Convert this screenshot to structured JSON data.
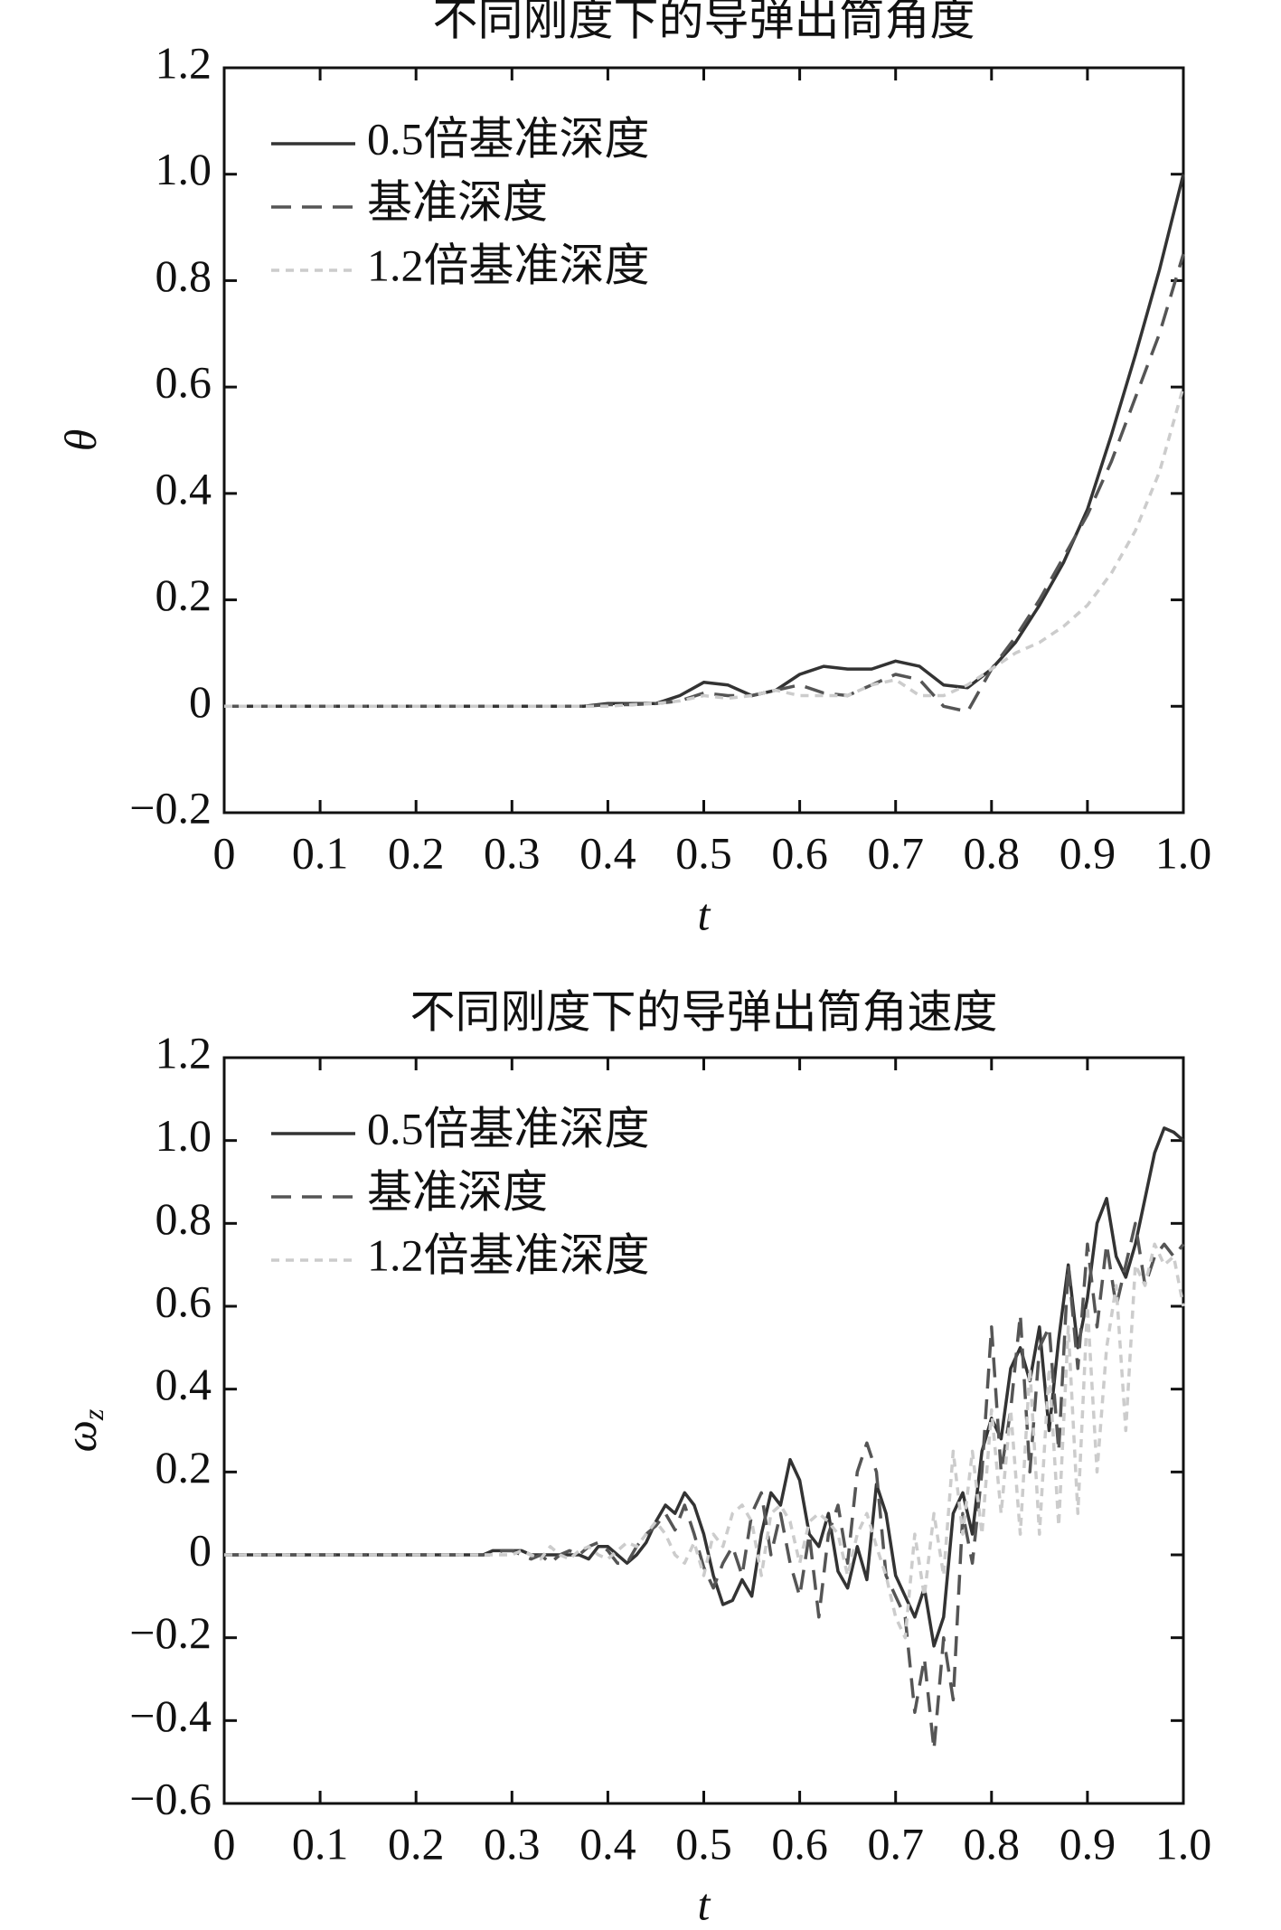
{
  "chart_data": [
    {
      "type": "line",
      "title": "不同刚度下的导弹出筒角度",
      "x_label": "t",
      "y_label": {
        "symbol": "θ"
      },
      "xlim": [
        0,
        1
      ],
      "ylim": [
        -0.2,
        1.2
      ],
      "xticks": [
        0,
        0.1,
        0.2,
        0.3,
        0.4,
        0.5,
        0.6,
        0.7,
        0.8,
        0.9,
        {
          "value": 1,
          "label": "1.0"
        }
      ],
      "yticks": [
        {
          "value": -0.2,
          "label": "−0.2"
        },
        0,
        0.2,
        0.4,
        0.6,
        0.8,
        {
          "value": 1,
          "label": "1.0"
        },
        1.2
      ],
      "legend": "upper left",
      "x": [
        0,
        0.025,
        0.05,
        0.075,
        0.1,
        0.125,
        0.15,
        0.175,
        0.2,
        0.225,
        0.25,
        0.275,
        0.3,
        0.325,
        0.35,
        0.375,
        0.4,
        0.425,
        0.45,
        0.475,
        0.5,
        0.525,
        0.55,
        0.575,
        0.6,
        0.625,
        0.65,
        0.675,
        0.7,
        0.725,
        0.75,
        0.775,
        0.8,
        0.825,
        0.85,
        0.875,
        0.9,
        0.925,
        0.95,
        0.975,
        1
      ],
      "series": [
        {
          "name": "0.5倍基准深度",
          "color": "#333333",
          "linestyle": "solid",
          "values": [
            0,
            0,
            0,
            0,
            0,
            0,
            0,
            0,
            0,
            0,
            0,
            0,
            0,
            0,
            0,
            0,
            0.005,
            0.005,
            0.005,
            0.02,
            0.045,
            0.04,
            0.02,
            0.03,
            0.06,
            0.075,
            0.07,
            0.07,
            0.085,
            0.075,
            0.04,
            0.035,
            0.07,
            0.12,
            0.19,
            0.27,
            0.37,
            0.51,
            0.66,
            0.82,
            1.0
          ]
        },
        {
          "name": "基准深度",
          "color": "#555555",
          "linestyle": "dashed",
          "values": [
            0,
            0,
            0,
            0,
            0,
            0,
            0,
            0,
            0,
            0,
            0,
            0,
            0,
            0,
            0,
            0,
            0.003,
            0.003,
            0.005,
            0.01,
            0.025,
            0.02,
            0.02,
            0.03,
            0.04,
            0.025,
            0.02,
            0.04,
            0.06,
            0.05,
            0.0,
            -0.01,
            0.07,
            0.13,
            0.2,
            0.28,
            0.36,
            0.46,
            0.58,
            0.7,
            0.85
          ]
        },
        {
          "name": "1.2倍基准深度",
          "color": "#cccccc",
          "linestyle": "dotted",
          "values": [
            0,
            0,
            0,
            0,
            0,
            0,
            0,
            0,
            0,
            0,
            0,
            0,
            0,
            0,
            0,
            0,
            0,
            0.003,
            0.005,
            0.01,
            0.02,
            0.015,
            0.02,
            0.03,
            0.02,
            0.02,
            0.02,
            0.04,
            0.05,
            0.02,
            0.02,
            0.04,
            0.07,
            0.1,
            0.12,
            0.15,
            0.19,
            0.25,
            0.33,
            0.44,
            0.6
          ]
        }
      ]
    },
    {
      "type": "line",
      "title": "不同刚度下的导弹出筒角速度",
      "x_label": "t",
      "y_label": {
        "symbol": "ω",
        "subscript": "z"
      },
      "xlim": [
        0,
        1
      ],
      "ylim": [
        -0.6,
        1.2
      ],
      "xticks": [
        0,
        0.1,
        0.2,
        0.3,
        0.4,
        0.5,
        0.6,
        0.7,
        0.8,
        0.9,
        {
          "value": 1,
          "label": "1.0"
        }
      ],
      "yticks": [
        {
          "value": -0.6,
          "label": "−0.6"
        },
        {
          "value": -0.4,
          "label": "−0.4"
        },
        {
          "value": -0.2,
          "label": "−0.2"
        },
        0,
        0.2,
        0.4,
        0.6,
        0.8,
        {
          "value": 1,
          "label": "1.0"
        },
        1.2
      ],
      "legend": "upper left",
      "x": [
        0,
        0.01,
        0.02,
        0.03,
        0.04,
        0.05,
        0.06,
        0.07,
        0.08,
        0.09,
        0.1,
        0.11,
        0.12,
        0.13,
        0.14,
        0.15,
        0.16,
        0.17,
        0.18,
        0.19,
        0.2,
        0.21,
        0.22,
        0.23,
        0.24,
        0.25,
        0.26,
        0.27,
        0.28,
        0.29,
        0.3,
        0.31,
        0.32,
        0.33,
        0.34,
        0.35,
        0.36,
        0.37,
        0.38,
        0.39,
        0.4,
        0.41,
        0.42,
        0.43,
        0.44,
        0.45,
        0.46,
        0.47,
        0.48,
        0.49,
        0.5,
        0.51,
        0.52,
        0.53,
        0.54,
        0.55,
        0.56,
        0.57,
        0.58,
        0.59,
        0.6,
        0.61,
        0.62,
        0.63,
        0.64,
        0.65,
        0.66,
        0.67,
        0.68,
        0.69,
        0.7,
        0.71,
        0.72,
        0.73,
        0.74,
        0.75,
        0.76,
        0.77,
        0.78,
        0.79,
        0.8,
        0.81,
        0.82,
        0.83,
        0.84,
        0.85,
        0.86,
        0.87,
        0.88,
        0.89,
        0.9,
        0.91,
        0.92,
        0.93,
        0.94,
        0.95,
        0.96,
        0.97,
        0.98,
        0.99,
        1
      ],
      "series": [
        {
          "name": "0.5倍基准深度",
          "color": "#333333",
          "linestyle": "solid",
          "values": [
            0,
            0,
            0,
            0,
            0,
            0,
            0,
            0,
            0,
            0,
            0,
            0,
            0,
            0,
            0,
            0,
            0,
            0,
            0,
            0,
            0,
            0,
            0,
            0,
            0,
            0,
            0,
            0,
            0.01,
            0.01,
            0.01,
            0.01,
            0,
            0,
            0,
            0,
            0,
            0,
            -0.01,
            0.02,
            0.02,
            0,
            -0.02,
            0,
            0.03,
            0.08,
            0.12,
            0.1,
            0.15,
            0.12,
            0.05,
            -0.05,
            -0.12,
            -0.11,
            -0.06,
            -0.1,
            0.05,
            0.15,
            0.12,
            0.23,
            0.18,
            0.05,
            0.02,
            0.1,
            -0.04,
            -0.08,
            0.02,
            -0.06,
            0.17,
            0.1,
            -0.05,
            -0.1,
            -0.15,
            -0.08,
            -0.22,
            -0.15,
            0.1,
            0.15,
            0.05,
            0.25,
            0.33,
            0.28,
            0.45,
            0.5,
            0.42,
            0.55,
            0.3,
            0.52,
            0.7,
            0.5,
            0.62,
            0.8,
            0.86,
            0.72,
            0.67,
            0.75,
            0.86,
            0.97,
            1.03,
            1.02,
            1.0
          ]
        },
        {
          "name": "基准深度",
          "color": "#555555",
          "linestyle": "dashed",
          "values": [
            0,
            0,
            0,
            0,
            0,
            0,
            0,
            0,
            0,
            0,
            0,
            0,
            0,
            0,
            0,
            0,
            0,
            0,
            0,
            0,
            0,
            0,
            0,
            0,
            0,
            0,
            0,
            0,
            0,
            0.01,
            0.01,
            0,
            -0.01,
            0,
            -0.02,
            0,
            0.01,
            0,
            0.02,
            0.03,
            0.01,
            -0.02,
            -0.02,
            0.02,
            0.05,
            0.07,
            0.1,
            0.06,
            0.12,
            0.05,
            -0.03,
            -0.08,
            -0.02,
            0.02,
            -0.05,
            0.1,
            0.15,
            0,
            0.1,
            -0.02,
            -0.1,
            0.05,
            -0.15,
            0.05,
            0.12,
            -0.02,
            0.2,
            0.27,
            0.2,
            -0.05,
            -0.1,
            -0.15,
            -0.38,
            -0.25,
            -0.47,
            -0.2,
            -0.35,
            0.1,
            -0.02,
            0.2,
            0.55,
            0.2,
            0.35,
            0.58,
            0.2,
            0.5,
            0.55,
            0.25,
            0.7,
            0.45,
            0.75,
            0.55,
            0.75,
            0.6,
            0.7,
            0.8,
            0.65,
            0.72,
            0.75,
            0.72,
            0.75
          ]
        },
        {
          "name": "1.2倍基准深度",
          "color": "#cccccc",
          "linestyle": "dotted",
          "values": [
            0,
            0,
            0,
            0,
            0,
            0,
            0,
            0,
            0,
            0,
            0,
            0,
            0,
            0,
            0,
            0,
            0,
            0,
            0,
            0,
            0,
            0,
            0,
            0,
            0,
            0,
            0,
            0,
            0,
            0,
            0,
            0.01,
            0,
            -0.01,
            0.02,
            0,
            -0.01,
            0.01,
            0.02,
            0,
            -0.01,
            0.01,
            0.03,
            0.02,
            0.05,
            0.08,
            0.05,
            0,
            -0.02,
            0.03,
            -0.05,
            0.05,
            0.02,
            0.1,
            0.12,
            0.08,
            -0.05,
            0.1,
            0.12,
            0.08,
            -0.02,
            0.08,
            0.1,
            0.08,
            0.05,
            -0.05,
            0.05,
            0.1,
            0.02,
            -0.05,
            -0.15,
            -0.2,
            0.05,
            -0.1,
            0.1,
            -0.05,
            0.25,
            0.05,
            0.25,
            0.05,
            0.35,
            0.1,
            0.35,
            0.05,
            0.45,
            0.05,
            0.45,
            0.07,
            0.55,
            0.1,
            0.6,
            0.2,
            0.5,
            0.65,
            0.3,
            0.7,
            0.65,
            0.75,
            0.7,
            0.72,
            0.6
          ]
        }
      ]
    }
  ]
}
